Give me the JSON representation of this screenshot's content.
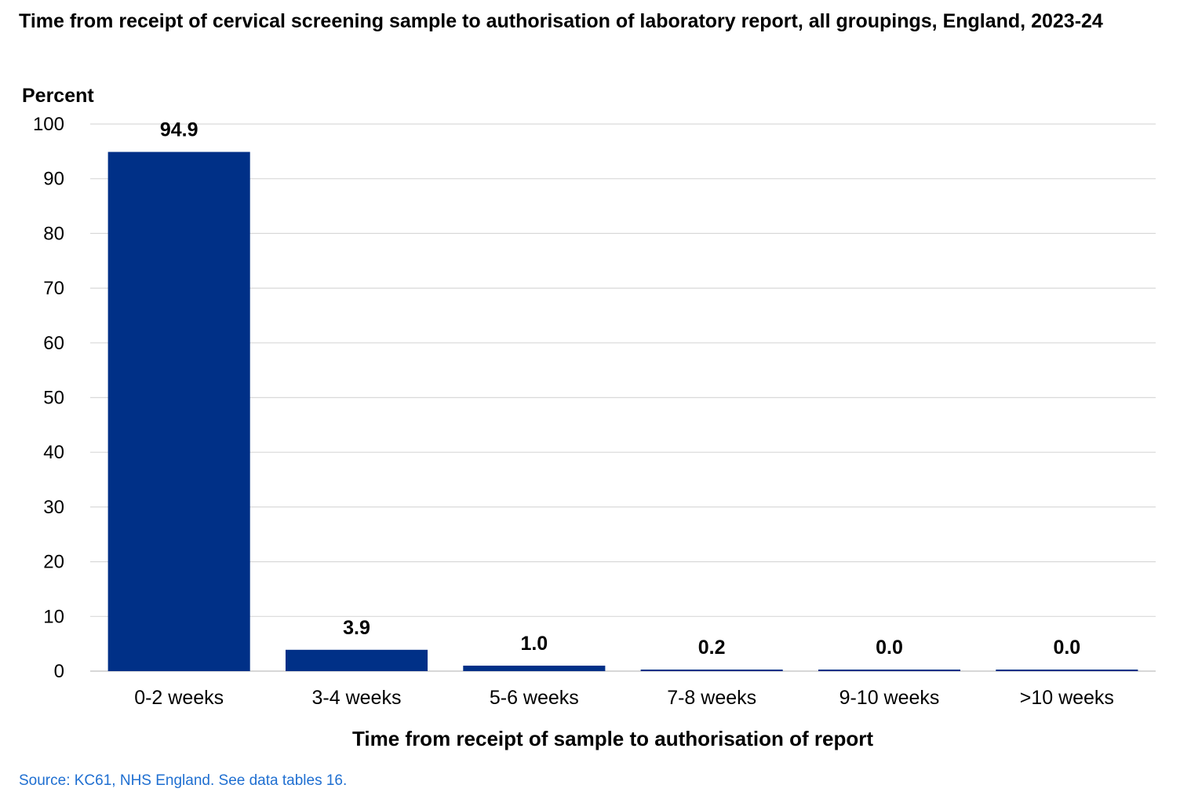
{
  "chart_data": {
    "type": "bar",
    "title": "Time from receipt of cervical screening sample to authorisation of laboratory report, all groupings, England, 2023-24",
    "ylabel": "Percent",
    "xlabel": "Time from receipt of sample to authorisation of report",
    "categories": [
      "0-2 weeks",
      "3-4 weeks",
      "5-6 weeks",
      "7-8 weeks",
      "9-10 weeks",
      ">10 weeks"
    ],
    "values": [
      94.9,
      3.9,
      1.0,
      0.2,
      0.0,
      0.0
    ],
    "data_labels": [
      "94.9",
      "3.9",
      "1.0",
      "0.2",
      "0.0",
      "0.0"
    ],
    "ylim": [
      0,
      100
    ],
    "yticks": [
      0,
      10,
      20,
      30,
      40,
      50,
      60,
      70,
      80,
      90,
      100
    ],
    "grid": true,
    "legend": "none",
    "bar_color": "#003087",
    "gridline_color": "#d9d9d9"
  },
  "source": "Source: KC61, NHS England. See data tables 16."
}
